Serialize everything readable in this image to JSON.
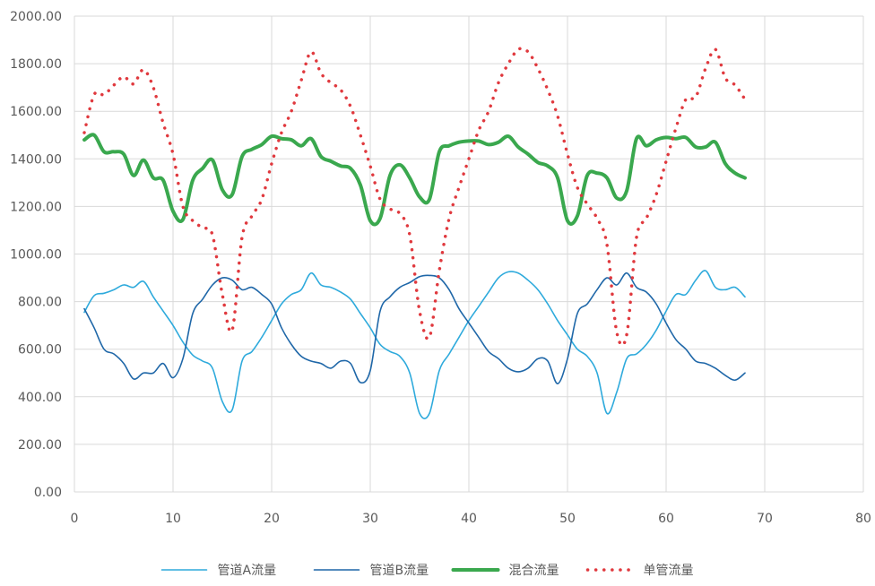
{
  "chart_data": {
    "type": "line",
    "title": "",
    "xlabel": "",
    "ylabel": "",
    "xlim": [
      0,
      80
    ],
    "ylim": [
      0,
      2000
    ],
    "x_ticks": [
      "0",
      "10",
      "20",
      "30",
      "40",
      "50",
      "60",
      "70",
      "80"
    ],
    "y_ticks": [
      "0.00",
      "200.00",
      "400.00",
      "600.00",
      "800.00",
      "1000.00",
      "1200.00",
      "1400.00",
      "1600.00",
      "1800.00",
      "2000.00"
    ],
    "grid": true,
    "legend_position": "bottom",
    "x": [
      1,
      2,
      3,
      4,
      5,
      6,
      7,
      8,
      9,
      10,
      11,
      12,
      13,
      14,
      15,
      16,
      17,
      18,
      19,
      20,
      21,
      22,
      23,
      24,
      25,
      26,
      27,
      28,
      29,
      30,
      31,
      32,
      33,
      34,
      35,
      36,
      37,
      38,
      39,
      40,
      41,
      42,
      43,
      44,
      45,
      46,
      47,
      48,
      49,
      50,
      51,
      52,
      53,
      54,
      55,
      56,
      57,
      58,
      59,
      60,
      61,
      62,
      63,
      64,
      65,
      66,
      67,
      68
    ],
    "series": [
      {
        "name": "管道A流量",
        "color": "#2eaadc",
        "style": "solid-thin",
        "values": [
          755,
          825,
          835,
          850,
          870,
          860,
          885,
          820,
          760,
          700,
          630,
          575,
          550,
          520,
          380,
          345,
          550,
          590,
          650,
          720,
          790,
          830,
          850,
          920,
          870,
          860,
          840,
          810,
          750,
          690,
          620,
          590,
          570,
          500,
          330,
          330,
          510,
          580,
          650,
          720,
          780,
          840,
          900,
          925,
          920,
          890,
          850,
          790,
          720,
          660,
          600,
          570,
          500,
          330,
          420,
          560,
          580,
          620,
          680,
          760,
          830,
          830,
          890,
          930,
          860,
          850,
          860,
          820
        ]
      },
      {
        "name": "管道B流量",
        "color": "#1f67a8",
        "style": "solid-thin",
        "values": [
          770,
          690,
          600,
          580,
          540,
          475,
          500,
          500,
          540,
          480,
          560,
          750,
          810,
          870,
          900,
          890,
          850,
          860,
          830,
          790,
          690,
          620,
          570,
          550,
          540,
          520,
          550,
          540,
          460,
          510,
          760,
          820,
          860,
          880,
          905,
          910,
          900,
          850,
          770,
          710,
          650,
          590,
          560,
          520,
          505,
          520,
          560,
          550,
          455,
          560,
          750,
          790,
          850,
          900,
          870,
          920,
          860,
          840,
          790,
          710,
          640,
          600,
          550,
          540,
          520,
          490,
          470,
          500
        ]
      },
      {
        "name": "混合流量",
        "color": "#3aa84e",
        "style": "solid-thick",
        "values": [
          1480,
          1500,
          1430,
          1430,
          1420,
          1330,
          1395,
          1320,
          1310,
          1180,
          1145,
          1310,
          1360,
          1395,
          1270,
          1250,
          1410,
          1440,
          1460,
          1495,
          1485,
          1480,
          1455,
          1485,
          1410,
          1390,
          1370,
          1360,
          1290,
          1140,
          1150,
          1330,
          1375,
          1320,
          1240,
          1230,
          1430,
          1455,
          1470,
          1475,
          1475,
          1460,
          1470,
          1495,
          1450,
          1420,
          1385,
          1370,
          1320,
          1140,
          1160,
          1330,
          1340,
          1320,
          1235,
          1265,
          1485,
          1455,
          1480,
          1490,
          1485,
          1490,
          1450,
          1450,
          1470,
          1380,
          1340,
          1320
        ]
      },
      {
        "name": "单管流量",
        "color": "#e0393e",
        "style": "dotted",
        "values": [
          1510,
          1670,
          1670,
          1710,
          1745,
          1715,
          1775,
          1700,
          1550,
          1420,
          1200,
          1140,
          1110,
          1080,
          830,
          680,
          1070,
          1160,
          1230,
          1380,
          1510,
          1600,
          1730,
          1850,
          1760,
          1720,
          1690,
          1620,
          1500,
          1370,
          1230,
          1190,
          1170,
          1080,
          760,
          650,
          930,
          1150,
          1280,
          1400,
          1520,
          1600,
          1720,
          1800,
          1860,
          1850,
          1780,
          1690,
          1580,
          1420,
          1280,
          1210,
          1150,
          1040,
          670,
          660,
          1070,
          1150,
          1250,
          1390,
          1530,
          1650,
          1660,
          1780,
          1860,
          1740,
          1710,
          1650
        ]
      }
    ]
  }
}
